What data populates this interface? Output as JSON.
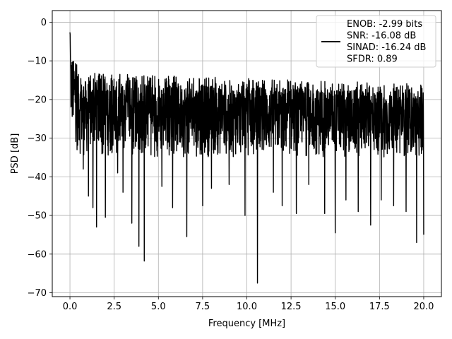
{
  "chart_data": {
    "type": "line",
    "title": "",
    "xlabel": "Frequency [MHz]",
    "ylabel": "PSD [dB]",
    "xlim": [
      -1.0,
      21.0
    ],
    "ylim": [
      -71.0,
      3.0
    ],
    "xticks": [
      0.0,
      2.5,
      5.0,
      7.5,
      10.0,
      12.5,
      15.0,
      17.5,
      20.0
    ],
    "xtick_labels": [
      "0.0",
      "2.5",
      "5.0",
      "7.5",
      "10.0",
      "12.5",
      "15.0",
      "17.5",
      "20.0"
    ],
    "yticks": [
      0,
      -10,
      -20,
      -30,
      -40,
      -50,
      -60,
      -70
    ],
    "ytick_labels": [
      "0",
      "−10",
      "−20",
      "−30",
      "−40",
      "−50",
      "−60",
      "−70"
    ],
    "grid": true,
    "legend_position": "top-right",
    "series": [
      {
        "name": "ENOB: -2.99 bits\nSNR: -16.08 dB\nSINAD: -16.24 dB\nSFDR: 0.89",
        "color": "#000000",
        "x_range": [
          0.0,
          20.0
        ],
        "num_points": 2048,
        "notes_envelope": {
          "peak_db_at_dc": 0.0,
          "typical_upper_db": -15.0,
          "typical_lower_db": -35.0
        },
        "deep_notches": [
          {
            "x": 0.4,
            "y": -33.0
          },
          {
            "x": 0.75,
            "y": -38.0
          },
          {
            "x": 1.05,
            "y": -45.0
          },
          {
            "x": 1.3,
            "y": -48.0
          },
          {
            "x": 1.5,
            "y": -53.0
          },
          {
            "x": 2.0,
            "y": -50.5
          },
          {
            "x": 2.7,
            "y": -39.0
          },
          {
            "x": 3.0,
            "y": -44.0
          },
          {
            "x": 3.5,
            "y": -52.0
          },
          {
            "x": 3.9,
            "y": -58.0
          },
          {
            "x": 4.2,
            "y": -61.8
          },
          {
            "x": 5.2,
            "y": -42.5
          },
          {
            "x": 5.8,
            "y": -48.0
          },
          {
            "x": 6.6,
            "y": -55.5
          },
          {
            "x": 7.5,
            "y": -47.5
          },
          {
            "x": 8.0,
            "y": -43.0
          },
          {
            "x": 9.0,
            "y": -42.0
          },
          {
            "x": 9.9,
            "y": -50.0
          },
          {
            "x": 10.6,
            "y": -67.5
          },
          {
            "x": 11.5,
            "y": -44.0
          },
          {
            "x": 12.0,
            "y": -47.5
          },
          {
            "x": 12.8,
            "y": -49.5
          },
          {
            "x": 13.5,
            "y": -42.0
          },
          {
            "x": 14.4,
            "y": -49.5
          },
          {
            "x": 15.0,
            "y": -54.5
          },
          {
            "x": 15.6,
            "y": -46.0
          },
          {
            "x": 16.3,
            "y": -49.0
          },
          {
            "x": 17.0,
            "y": -52.5
          },
          {
            "x": 17.6,
            "y": -46.0
          },
          {
            "x": 18.3,
            "y": -47.5
          },
          {
            "x": 19.0,
            "y": -49.0
          },
          {
            "x": 19.6,
            "y": -57.0
          },
          {
            "x": 20.0,
            "y": -55.0
          }
        ]
      }
    ]
  }
}
